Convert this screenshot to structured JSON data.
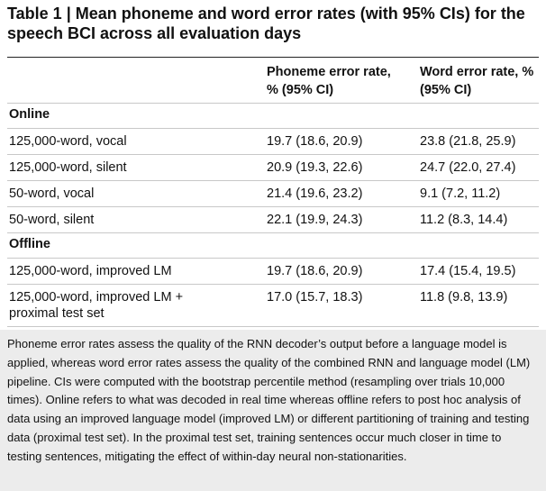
{
  "title": "Table 1 | Mean phoneme and word error rates (with 95% CIs) for the speech BCI across all evaluation days",
  "table": {
    "headers": [
      "Phoneme error rate, % (95% CI)",
      "Word error rate, % (95% CI)"
    ],
    "sections": [
      {
        "name": "Online",
        "rows": [
          [
            "125,000-word, vocal",
            "19.7 (18.6, 20.9)",
            "23.8 (21.8, 25.9)"
          ],
          [
            "125,000-word, silent",
            "20.9 (19.3, 22.6)",
            "24.7 (22.0, 27.4)"
          ],
          [
            "50-word, vocal",
            "21.4 (19.6, 23.2)",
            "9.1 (7.2, 11.2)"
          ],
          [
            "50-word, silent",
            "22.1 (19.9, 24.3)",
            "11.2 (8.3, 14.4)"
          ]
        ]
      },
      {
        "name": "Offline",
        "rows": [
          [
            "125,000-word, improved LM",
            "19.7 (18.6, 20.9)",
            "17.4 (15.4, 19.5)"
          ],
          [
            "125,000-word, improved LM + proximal test set",
            "17.0 (15.7, 18.3)",
            "11.8 (9.8, 13.9)"
          ]
        ]
      }
    ]
  },
  "footnote": "Phoneme error rates assess the quality of the RNN decoder’s output before a language model is applied, whereas word error rates assess the quality of the combined RNN and language model (LM) pipeline. CIs were computed with the bootstrap percentile method (resampling over trials 10,000 times). Online refers to what was decoded in real time whereas offline refers to post hoc analysis of data using an improved language model (improved LM) or different partitioning of training and testing data (proximal test set). In the proximal test set, training sentences occur much closer in time to testing sentences, mitigating the effect of within-day neural non-stationarities."
}
